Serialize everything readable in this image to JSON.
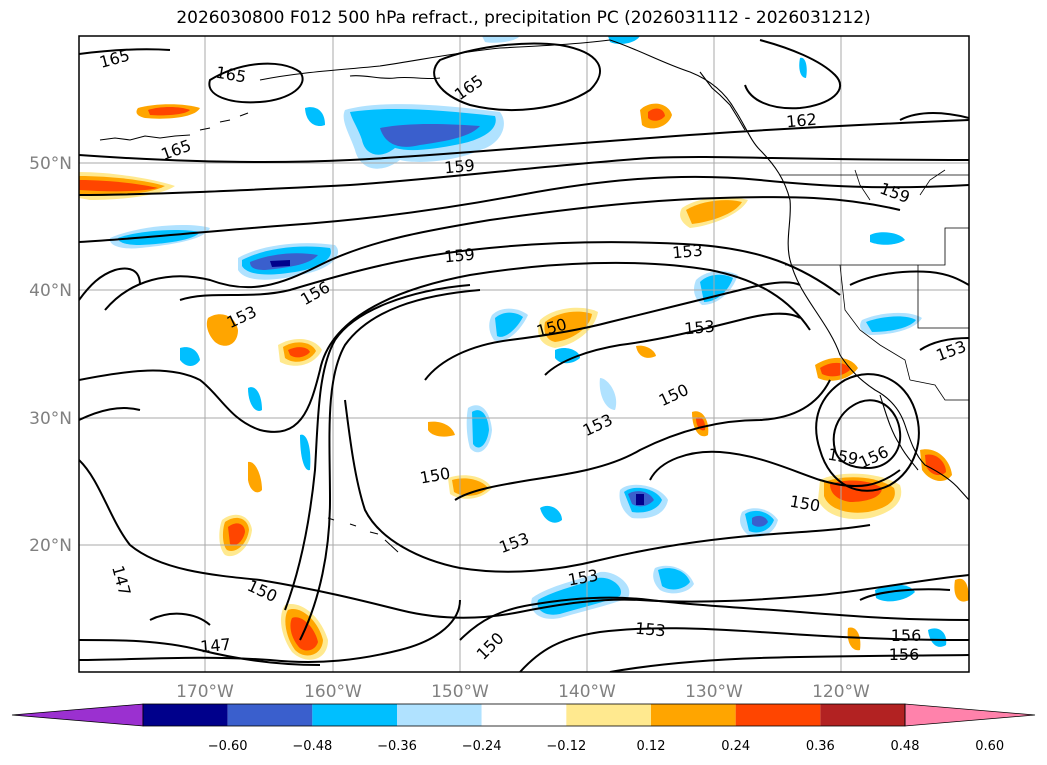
{
  "title": "2026030800 F012 500 hPa refract., precipitation PC (2026031112 - 2026031212)",
  "latitude_labels": [
    "50°N",
    "40°N",
    "30°N",
    "20°N"
  ],
  "longitude_labels": [
    "170°W",
    "160°W",
    "150°W",
    "140°W",
    "130°W",
    "120°W"
  ],
  "colorbar": {
    "tick_labels": [
      "−0.60",
      "−0.48",
      "−0.36",
      "−0.24",
      "−0.12",
      "0.12",
      "0.24",
      "0.36",
      "0.48",
      "0.60"
    ],
    "colors": [
      "#9b30d0",
      "#00008b",
      "#3a5fcd",
      "#00bfff",
      "#b0e2ff",
      "#ffffff",
      "#ffe98f",
      "#ffa500",
      "#ff4500",
      "#b22222",
      "#ff82ab"
    ],
    "extend": "both"
  },
  "contour_labels": [
    "165",
    "165",
    "165",
    "165",
    "162",
    "159",
    "159",
    "159",
    "159",
    "156",
    "156",
    "156",
    "156",
    "153",
    "153",
    "153",
    "153",
    "153",
    "153",
    "153",
    "153",
    "150",
    "150",
    "150",
    "150",
    "150",
    "150",
    "147",
    "147"
  ],
  "colors": {
    "grid": "#aaaaaa",
    "contour": "#000000",
    "coast": "#000000"
  }
}
